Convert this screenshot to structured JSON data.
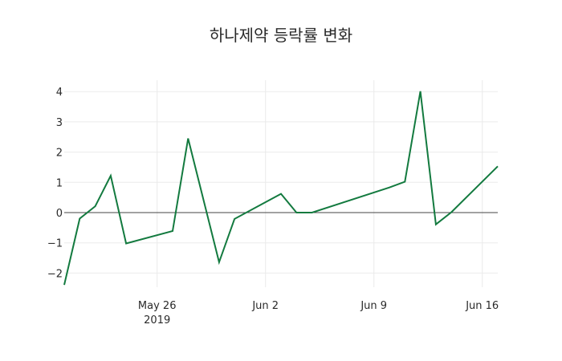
{
  "chart_data": {
    "type": "line",
    "title": "하나제약 등락률 변화",
    "xlabel": "",
    "ylabel": "",
    "x": [
      "2019-05-20",
      "2019-05-21",
      "2019-05-22",
      "2019-05-23",
      "2019-05-24",
      "2019-05-27",
      "2019-05-28",
      "2019-05-30",
      "2019-05-31",
      "2019-06-03",
      "2019-06-04",
      "2019-06-05",
      "2019-06-10",
      "2019-06-11",
      "2019-06-12",
      "2019-06-13",
      "2019-06-14",
      "2019-06-17"
    ],
    "series": [
      {
        "name": "등락률",
        "color": "#137a3f",
        "values": [
          -2.39,
          -0.2,
          0.21,
          1.22,
          -1.02,
          -0.61,
          2.45,
          -1.64,
          -0.21,
          0.62,
          0.0,
          0.0,
          0.83,
          1.02,
          4.01,
          -0.39,
          0.01,
          1.53
        ]
      }
    ],
    "xaxis": {
      "range": [
        "2019-05-20",
        "2019-06-17"
      ],
      "ticks": [
        {
          "date": "2019-05-26",
          "label": "May 26",
          "sublabel": "2019"
        },
        {
          "date": "2019-06-02",
          "label": "Jun 2",
          "sublabel": ""
        },
        {
          "date": "2019-06-09",
          "label": "Jun 9",
          "sublabel": ""
        },
        {
          "date": "2019-06-16",
          "label": "Jun 16",
          "sublabel": ""
        }
      ]
    },
    "yaxis": {
      "range": [
        -2.5,
        4.4
      ],
      "ticks": [
        -2,
        -1,
        0,
        1,
        2,
        3,
        4
      ],
      "tick_labels": [
        "−2",
        "−1",
        "0",
        "1",
        "2",
        "3",
        "4"
      ]
    },
    "grid": true,
    "zeroline": true,
    "legend": "none"
  }
}
